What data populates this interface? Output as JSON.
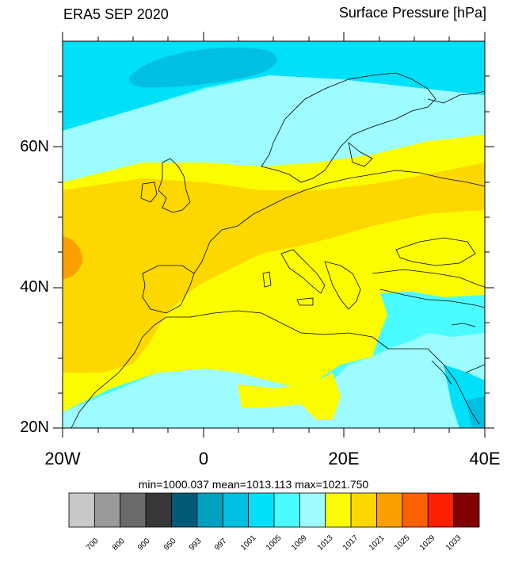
{
  "header": {
    "left_title": "ERA5 SEP 2020",
    "right_title": "Surface Pressure [hPa]"
  },
  "axes": {
    "y_ticks": [
      "60N",
      "40N",
      "20N"
    ],
    "x_ticks": [
      "20W",
      "0",
      "20E",
      "40E"
    ],
    "lon_range": [
      -20,
      40
    ],
    "lat_range": [
      20,
      75
    ]
  },
  "stats": {
    "text": "min=1000.037  mean=1013.113  max=1021.750",
    "min": 1000.037,
    "mean": 1013.113,
    "max": 1021.75
  },
  "colorbar": {
    "levels": [
      "700",
      "800",
      "900",
      "950",
      "993",
      "997",
      "1001",
      "1005",
      "1009",
      "1013",
      "1017",
      "1021",
      "1025",
      "1029",
      "1033"
    ],
    "colors": [
      "#c8c8c8",
      "#999999",
      "#6a6a6a",
      "#383838",
      "#005a78",
      "#00a0c0",
      "#00bfe0",
      "#00e0f8",
      "#4afcff",
      "#9cfcff",
      "#fcfc00",
      "#fcd800",
      "#fca000",
      "#fc6000",
      "#fc2000",
      "#800000"
    ]
  }
}
